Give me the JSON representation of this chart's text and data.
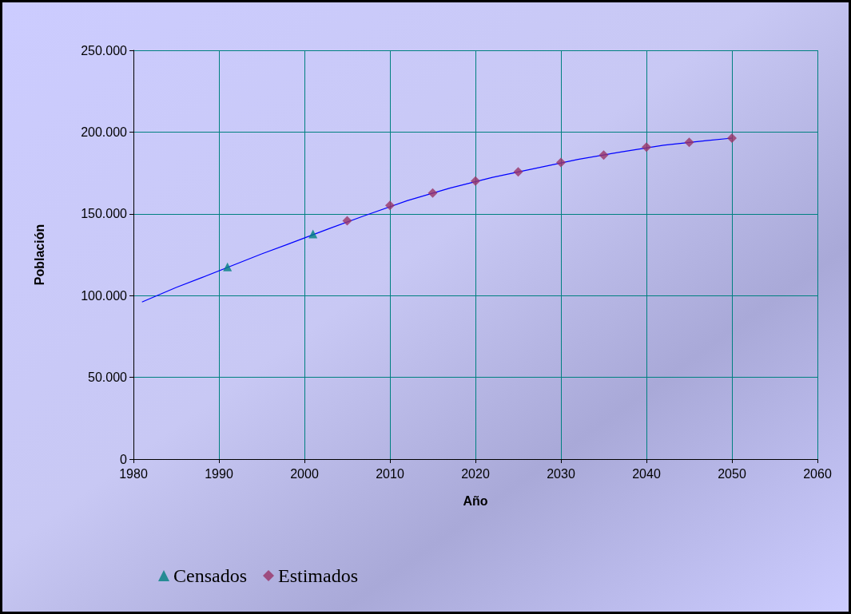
{
  "chart_data": {
    "type": "scatter",
    "xlabel": "Año",
    "ylabel": "Población",
    "xlim": [
      1980,
      2060
    ],
    "xticks": [
      1980,
      1990,
      2000,
      2010,
      2020,
      2030,
      2040,
      2050,
      2060
    ],
    "ylim": [
      0,
      250000
    ],
    "yticks": [
      {
        "value": 0,
        "label": "0"
      },
      {
        "value": 50000,
        "label": "50.000"
      },
      {
        "value": 100000,
        "label": "100.000"
      },
      {
        "value": 150000,
        "label": "150.000"
      },
      {
        "value": 200000,
        "label": "200.000"
      },
      {
        "value": 250000,
        "label": "250.000"
      }
    ],
    "grid": true,
    "legend": "bottom left",
    "series": [
      {
        "type": "line",
        "color": "#0000ff",
        "marker": "none",
        "line_style": "solid",
        "x": [
          1981,
          1985,
          1988,
          1995,
          1998,
          2003,
          2007,
          2012,
          2017,
          2022,
          2027,
          2032,
          2037,
          2042,
          2047,
          2050
        ],
        "values": [
          96100,
          105000,
          111000,
          125500,
          131300,
          141200,
          148800,
          158000,
          165700,
          172300,
          177800,
          183300,
          187800,
          192000,
          194800,
          196300
        ]
      },
      {
        "name": "Censados",
        "color": "#008080",
        "marker": "triangle",
        "x": [
          1991,
          2001
        ],
        "values": [
          117500,
          137700
        ]
      },
      {
        "name": "Estimados",
        "color": "#993366",
        "marker": "diamond",
        "x": [
          2005,
          2010,
          2015,
          2020,
          2025,
          2030,
          2035,
          2040,
          2045,
          2050
        ],
        "values": [
          145800,
          155100,
          162700,
          170000,
          175600,
          181400,
          185900,
          190800,
          193700,
          196300
        ]
      }
    ]
  }
}
